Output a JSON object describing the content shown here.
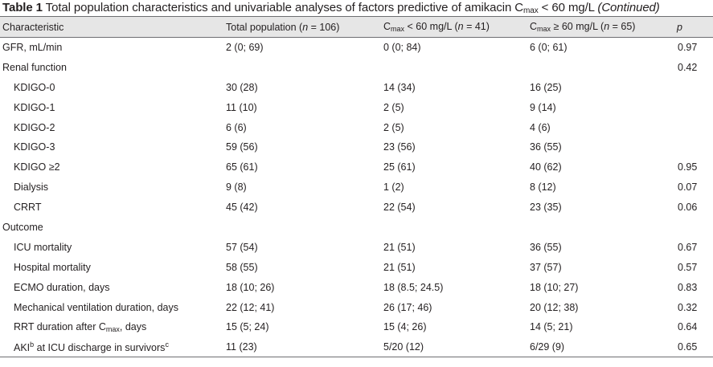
{
  "caption": {
    "label": "Table 1",
    "text_before": " Total population characteristics and univariable analyses of factors predictive of amikacin C",
    "sub": "max",
    "text_after": " < 60 mg/L ",
    "continued": "(Continued)"
  },
  "header": {
    "characteristic": "Characteristic",
    "total_prefix": "Total population (",
    "total_n": "n",
    "total_suffix": " = 106)",
    "low_c": "C",
    "low_sub": "max",
    "low_mid": " < 60 mg/L (",
    "low_n": "n",
    "low_suffix": " = 41)",
    "high_c": "C",
    "high_sub": "max",
    "high_mid": " ≥ 60 mg/L (",
    "high_n": "n",
    "high_suffix": " = 65)",
    "p": "p"
  },
  "rows": [
    {
      "label": "GFR, mL/min",
      "total": "2 (0; 69)",
      "low": "0 (0; 84)",
      "high": "6 (0; 61)",
      "p": "0.97"
    },
    {
      "label": "Renal function",
      "total": "",
      "low": "",
      "high": "",
      "p": "0.42"
    },
    {
      "label": "KDIGO-0",
      "total": "30 (28)",
      "low": "14 (34)",
      "high": "16 (25)",
      "p": ""
    },
    {
      "label": "KDIGO-1",
      "total": "11 (10)",
      "low": "2 (5)",
      "high": "9 (14)",
      "p": ""
    },
    {
      "label": "KDIGO-2",
      "total": "6 (6)",
      "low": "2 (5)",
      "high": "4 (6)",
      "p": ""
    },
    {
      "label": "KDIGO-3",
      "total": "59 (56)",
      "low": "23 (56)",
      "high": "36 (55)",
      "p": ""
    },
    {
      "label": "KDIGO ≥2",
      "total": "65 (61)",
      "low": "25 (61)",
      "high": "40 (62)",
      "p": "0.95"
    },
    {
      "label": "Dialysis",
      "total": "9 (8)",
      "low": "1 (2)",
      "high": "8 (12)",
      "p": "0.07"
    },
    {
      "label": "CRRT",
      "total": "45 (42)",
      "low": "22 (54)",
      "high": "23 (35)",
      "p": "0.06"
    },
    {
      "label": "Outcome",
      "total": "",
      "low": "",
      "high": "",
      "p": ""
    },
    {
      "label": "ICU mortality",
      "total": "57 (54)",
      "low": "21 (51)",
      "high": "36 (55)",
      "p": "0.67"
    },
    {
      "label": "Hospital mortality",
      "total": "58 (55)",
      "low": "21 (51)",
      "high": "37 (57)",
      "p": "0.57"
    },
    {
      "label": "ECMO duration, days",
      "total": "18 (10; 26)",
      "low": "18 (8.5; 24.5)",
      "high": "18 (10; 27)",
      "p": "0.83"
    },
    {
      "label": "Mechanical ventilation duration, days",
      "total": "22 (12; 41)",
      "low": "26 (17; 46)",
      "high": "20 (12; 38)",
      "p": "0.32"
    },
    {
      "label_before": "RRT duration after C",
      "label_sub": "max",
      "label_after": ", days",
      "total": "15 (5; 24)",
      "low": "15 (4; 26)",
      "high": "14 (5; 21)",
      "p": "0.64"
    },
    {
      "label_a": "AKI",
      "label_sup_b": "b",
      "label_mid": " at ICU discharge in survivors",
      "label_sup_c": "c",
      "total": "11 (23)",
      "low": "5/20 (12)",
      "high": "6/29 (9)",
      "p": "0.65"
    }
  ]
}
